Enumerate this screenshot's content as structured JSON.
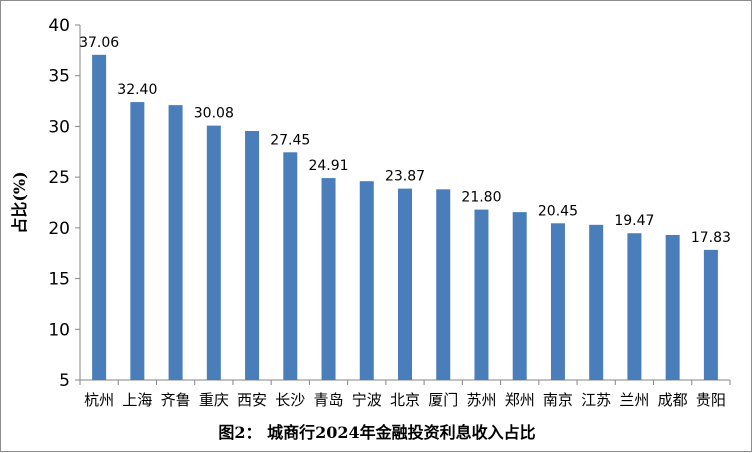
{
  "chart_data": {
    "type": "bar",
    "title": "图2： 城商行2024年金融投资利息收入占比",
    "xlabel": "",
    "ylabel": "占比(%)",
    "ylim": [
      5,
      40
    ],
    "yticks": [
      "5",
      "10",
      "15",
      "20",
      "25",
      "30",
      "35",
      "40"
    ],
    "grid": false,
    "legend": "none",
    "categories": [
      "杭州",
      "上海",
      "齐鲁",
      "重庆",
      "西安",
      "长沙",
      "青岛",
      "宁波",
      "北京",
      "厦门",
      "苏州",
      "郑州",
      "南京",
      "江苏",
      "兰州",
      "成都",
      "贵阳"
    ],
    "values": [
      37.06,
      32.4,
      32.1,
      30.08,
      29.55,
      27.45,
      24.91,
      24.6,
      23.87,
      23.8,
      21.8,
      21.55,
      20.45,
      20.3,
      19.47,
      19.3,
      17.83
    ],
    "data_labels": [
      "37.06",
      "32.40",
      "",
      "30.08",
      "",
      "27.45",
      "24.91",
      "",
      "23.87",
      "",
      "21.80",
      "",
      "20.45",
      "",
      "19.47",
      "",
      "17.83"
    ],
    "highlight_indices": [
      0,
      16
    ],
    "bar_color": "#4a7ebb",
    "highlight_label_color": "#ff0000",
    "label_color": "#000000",
    "axis_color": "#868686"
  }
}
